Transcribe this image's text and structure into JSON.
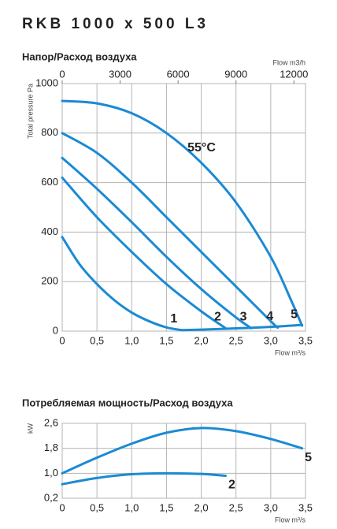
{
  "title": "RKB 1000 x 500 L3",
  "chart_data": [
    {
      "type": "line",
      "title": "Напор/Расход воздуха",
      "xlabel": "Flow m³/s",
      "ylabel": "Total pressure Pa",
      "x2label": "Flow m3/h",
      "xlim": [
        0,
        3.5
      ],
      "ylim": [
        0,
        1000
      ],
      "x2lim": [
        0,
        12600
      ],
      "xticks": [
        0,
        {
          "value": 0.5,
          "label": "0,5"
        },
        {
          "value": 1.0,
          "label": "1,0"
        },
        {
          "value": 1.5,
          "label": "1,5"
        },
        {
          "value": 2.0,
          "label": "2,0"
        },
        {
          "value": 2.5,
          "label": "2,5"
        },
        {
          "value": 3.0,
          "label": "3,0"
        },
        {
          "value": 3.5,
          "label": "3,5"
        }
      ],
      "yticks": [
        0,
        200,
        400,
        600,
        800,
        1000
      ],
      "x2ticks": [
        0,
        3000,
        6000,
        9000,
        12000
      ],
      "grid": true,
      "color": "#1a8ad4",
      "annotation": "55°C",
      "series": [
        {
          "name": "1",
          "x": [
            0,
            0.25,
            0.5,
            0.75,
            1.0,
            1.25,
            1.5,
            1.72
          ],
          "values": [
            380,
            270,
            190,
            125,
            75,
            40,
            15,
            4
          ]
        },
        {
          "name": "2",
          "x": [
            0,
            0.5,
            1.0,
            1.5,
            2.0,
            2.35
          ],
          "values": [
            620,
            460,
            320,
            190,
            80,
            12
          ]
        },
        {
          "name": "3",
          "x": [
            0,
            0.5,
            1.0,
            1.5,
            2.0,
            2.5,
            2.72
          ],
          "values": [
            700,
            575,
            440,
            300,
            170,
            55,
            12
          ]
        },
        {
          "name": "4",
          "x": [
            0,
            0.5,
            1.0,
            1.5,
            2.0,
            2.5,
            3.0,
            3.1
          ],
          "values": [
            800,
            720,
            600,
            460,
            320,
            180,
            40,
            14
          ]
        },
        {
          "name": "5",
          "x": [
            0,
            0.5,
            1.0,
            1.5,
            2.0,
            2.5,
            3.0,
            3.3,
            3.45
          ],
          "values": [
            930,
            920,
            880,
            800,
            680,
            520,
            300,
            120,
            22
          ]
        },
        {
          "x": [
            1.72,
            2.0,
            2.5,
            3.0,
            3.45
          ],
          "values": [
            4,
            6,
            11,
            17,
            25
          ]
        }
      ]
    },
    {
      "type": "line",
      "title": "Потребляемая мощность/Расход воздуха",
      "xlabel": "Flow m³/s",
      "ylabel": "kW",
      "xlim": [
        0,
        3.5
      ],
      "ylim": [
        0.2,
        2.6
      ],
      "xticks": [
        0,
        {
          "value": 0.5,
          "label": "0,5"
        },
        {
          "value": 1.0,
          "label": "1,0"
        },
        {
          "value": 1.5,
          "label": "1,5"
        },
        {
          "value": 2.0,
          "label": "2,0"
        },
        {
          "value": 2.5,
          "label": "2,5"
        },
        {
          "value": 3.0,
          "label": "3,0"
        },
        {
          "value": 3.5,
          "label": "3,5"
        }
      ],
      "yticks": [
        {
          "value": 0.2,
          "label": "0,2"
        },
        {
          "value": 1.0,
          "label": "1,0"
        },
        {
          "value": 1.8,
          "label": "1,8"
        },
        {
          "value": 2.6,
          "label": "2,6"
        }
      ],
      "grid": true,
      "color": "#1a8ad4",
      "series": [
        {
          "name": "5",
          "x": [
            0,
            0.5,
            1.0,
            1.5,
            2.0,
            2.5,
            3.0,
            3.45
          ],
          "values": [
            1.0,
            1.5,
            1.95,
            2.3,
            2.45,
            2.35,
            2.1,
            1.8
          ]
        },
        {
          "name": "2",
          "x": [
            0,
            0.5,
            1.0,
            1.5,
            2.0,
            2.35
          ],
          "values": [
            0.65,
            0.85,
            0.97,
            1.0,
            0.98,
            0.92
          ]
        }
      ]
    }
  ]
}
